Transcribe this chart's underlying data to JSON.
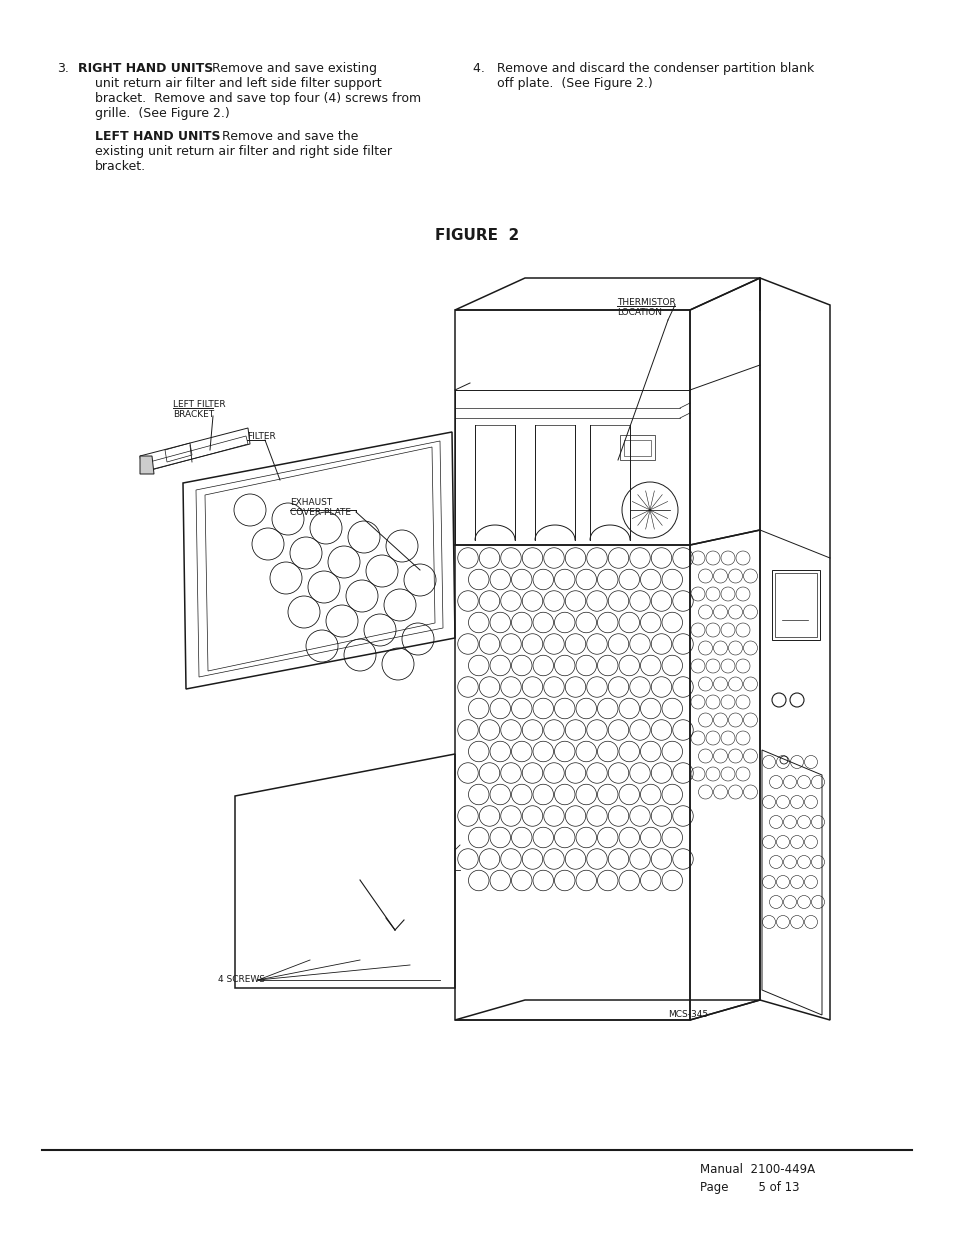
{
  "bg_color": "#ffffff",
  "text_color": "#1a1a1a",
  "figure_title": "FIGURE  2",
  "item3_bold": "RIGHT HAND UNITS",
  "item3_rest": "  Remove and save existing",
  "item3_line2": "unit return air filter and left side filter support",
  "item3_line3": "bracket.  Remove and save top four (4) screws from",
  "item3_line4": "grille.  (See Figure 2.)",
  "item3b_bold": "LEFT HAND UNITS",
  "item3b_rest": "   Remove and save the",
  "item3b_line2": "existing unit return air filter and right side filter",
  "item3b_line3": "bracket.",
  "item4_line1": "4.   Remove and discard the condenser partition blank",
  "item4_line2": "      off plate.  (See Figure 2.)",
  "lbl_thermistor": "THERMISTOR\nLOCATION",
  "lbl_left_filter": "LEFT FILTER\nBRACKET",
  "lbl_filter": "FILTER",
  "lbl_exhaust": "EXHAUST\nCOVER PLATE",
  "lbl_4screws": "4 SCREWS",
  "lbl_model": "MCS-345",
  "footer_line1": "Manual  2100-449A",
  "footer_line2": "Page        5 of 13"
}
